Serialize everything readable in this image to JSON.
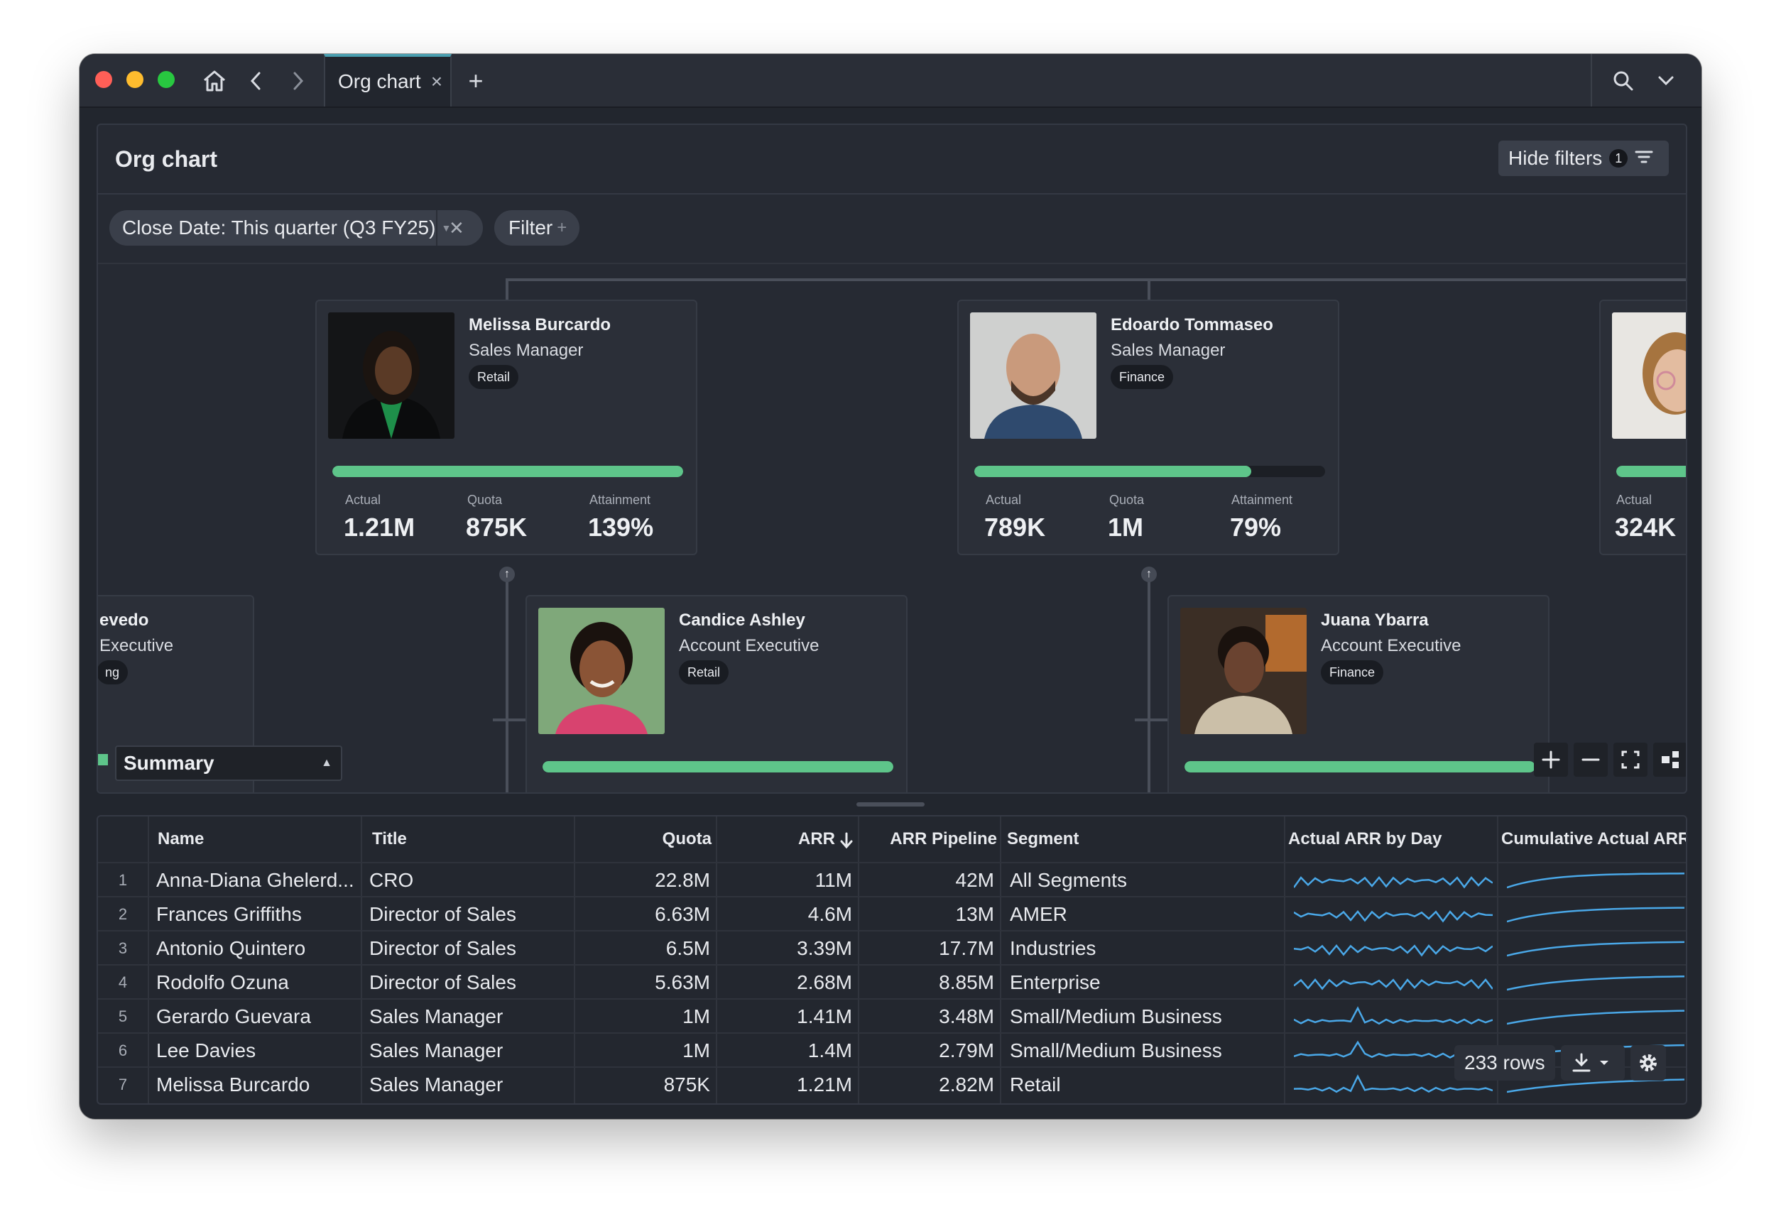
{
  "window": {
    "tab_title": "Org chart",
    "tab_close": "×",
    "new_tab": "+"
  },
  "panel": {
    "title": "Org chart",
    "hide_filters_label": "Hide filters",
    "filter_count": "1",
    "filter_chip": "Close Date: This quarter (Q3 FY25)",
    "filter_add_label": "Filter",
    "summary_label": "Summary"
  },
  "stat_labels": {
    "actual": "Actual",
    "quota": "Quota",
    "attainment": "Attainment"
  },
  "cards": [
    {
      "name": "Melissa Burcardo",
      "role": "Sales Manager",
      "segment": "Retail",
      "actual": "1.21M",
      "quota": "875K",
      "attainment": "139%",
      "progress": 1.0
    },
    {
      "name": "Edoardo Tommaseo",
      "role": "Sales Manager",
      "segment": "Finance",
      "actual": "789K",
      "quota": "1M",
      "attainment": "79%",
      "progress": 0.79
    },
    {
      "name": "",
      "role": "",
      "segment": "",
      "actual": "324K",
      "quota": "",
      "attainment": "",
      "progress": 1.0
    },
    {
      "name": "Candice Ashley",
      "role": "Account Executive",
      "segment": "Retail",
      "progress": 1.0
    },
    {
      "name": "Juana Ybarra",
      "role": "Account Executive",
      "segment": "Finance",
      "progress": 1.0
    },
    {
      "name_partial": "evedo",
      "role_partial": "Executive",
      "segment_partial": "ng"
    }
  ],
  "table": {
    "columns": [
      "Name",
      "Title",
      "Quota",
      "ARR",
      "ARR Pipeline",
      "Segment",
      "Actual ARR by Day",
      "Cumulative Actual ARR"
    ],
    "rows": [
      {
        "n": "1",
        "name": "Anna-Diana Ghelerd...",
        "title": "CRO",
        "quota": "22.8M",
        "arr": "11M",
        "pipeline": "42M",
        "segment": "All Segments"
      },
      {
        "n": "2",
        "name": "Frances Griffiths",
        "title": "Director of Sales",
        "quota": "6.63M",
        "arr": "4.6M",
        "pipeline": "13M",
        "segment": "AMER"
      },
      {
        "n": "3",
        "name": "Antonio Quintero",
        "title": "Director of Sales",
        "quota": "6.5M",
        "arr": "3.39M",
        "pipeline": "17.7M",
        "segment": "Industries"
      },
      {
        "n": "4",
        "name": "Rodolfo Ozuna",
        "title": "Director of Sales",
        "quota": "5.63M",
        "arr": "2.68M",
        "pipeline": "8.85M",
        "segment": "Enterprise"
      },
      {
        "n": "5",
        "name": "Gerardo Guevara",
        "title": "Sales Manager",
        "quota": "1M",
        "arr": "1.41M",
        "pipeline": "3.48M",
        "segment": "Small/Medium Business"
      },
      {
        "n": "6",
        "name": "Lee Davies",
        "title": "Sales Manager",
        "quota": "1M",
        "arr": "1.4M",
        "pipeline": "2.79M",
        "segment": "Small/Medium Business"
      },
      {
        "n": "7",
        "name": "Melissa Burcardo",
        "title": "Sales Manager",
        "quota": "875K",
        "arr": "1.21M",
        "pipeline": "2.82M",
        "segment": "Retail"
      }
    ],
    "row_count": "233 rows"
  },
  "colors": {
    "accent_green": "#5ec58a",
    "sparkline_blue": "#4aa8e8",
    "tab_accent": "#4a9fb0"
  }
}
